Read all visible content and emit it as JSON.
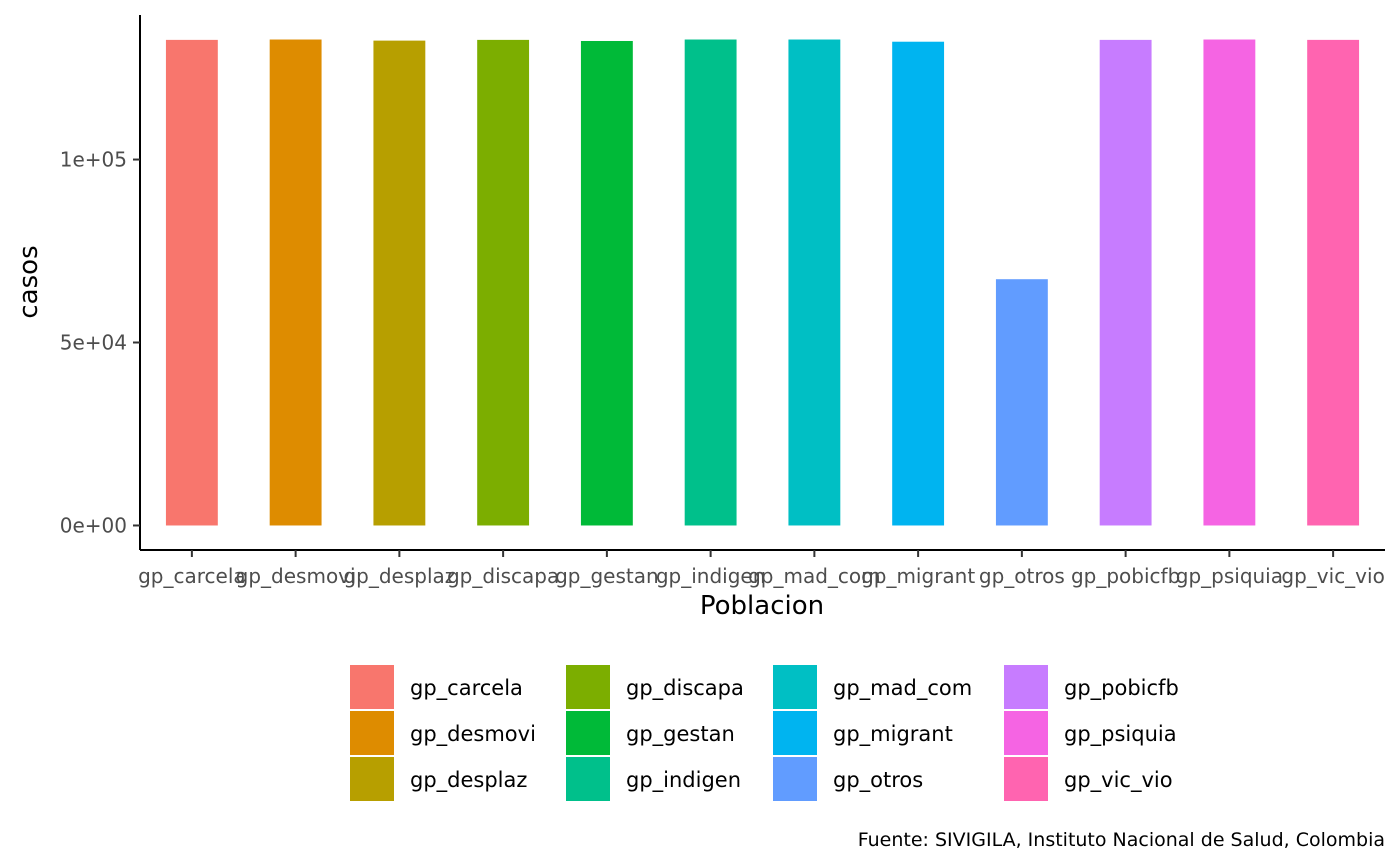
{
  "chart_data": {
    "type": "bar",
    "categories": [
      "gp_carcela",
      "gp_desmovi",
      "gp_desplaz",
      "gp_discapa",
      "gp_gestan",
      "gp_indigen",
      "gp_mad_com",
      "gp_migrant",
      "gp_otros",
      "gp_pobicfb",
      "gp_psiquia",
      "gp_vic_vio"
    ],
    "values": [
      132700,
      132800,
      132500,
      132700,
      132400,
      132800,
      132800,
      132200,
      67300,
      132700,
      132800,
      132700
    ],
    "colors": [
      "#F8766D",
      "#DE8C00",
      "#B79F00",
      "#7CAE00",
      "#00BA38",
      "#00C08B",
      "#00BFC4",
      "#00B4F0",
      "#619CFF",
      "#C77CFF",
      "#F564E3",
      "#FF64B0"
    ],
    "xlabel": "Poblacion",
    "ylabel": "casos",
    "yticks": [
      0,
      50000,
      100000
    ],
    "ytick_labels": [
      "0e+00",
      "5e+04",
      "1e+05"
    ],
    "ylim": [
      -6700,
      139500
    ],
    "grid": false,
    "legend": {
      "position": "bottom",
      "columns": 4,
      "entries": [
        "gp_carcela",
        "gp_desmovi",
        "gp_desplaz",
        "gp_discapa",
        "gp_gestan",
        "gp_indigen",
        "gp_mad_com",
        "gp_migrant",
        "gp_otros",
        "gp_pobicfb",
        "gp_psiquia",
        "gp_vic_vio"
      ]
    },
    "caption": "Fuente: SIVIGILA, Instituto Nacional de Salud, Colombia"
  }
}
